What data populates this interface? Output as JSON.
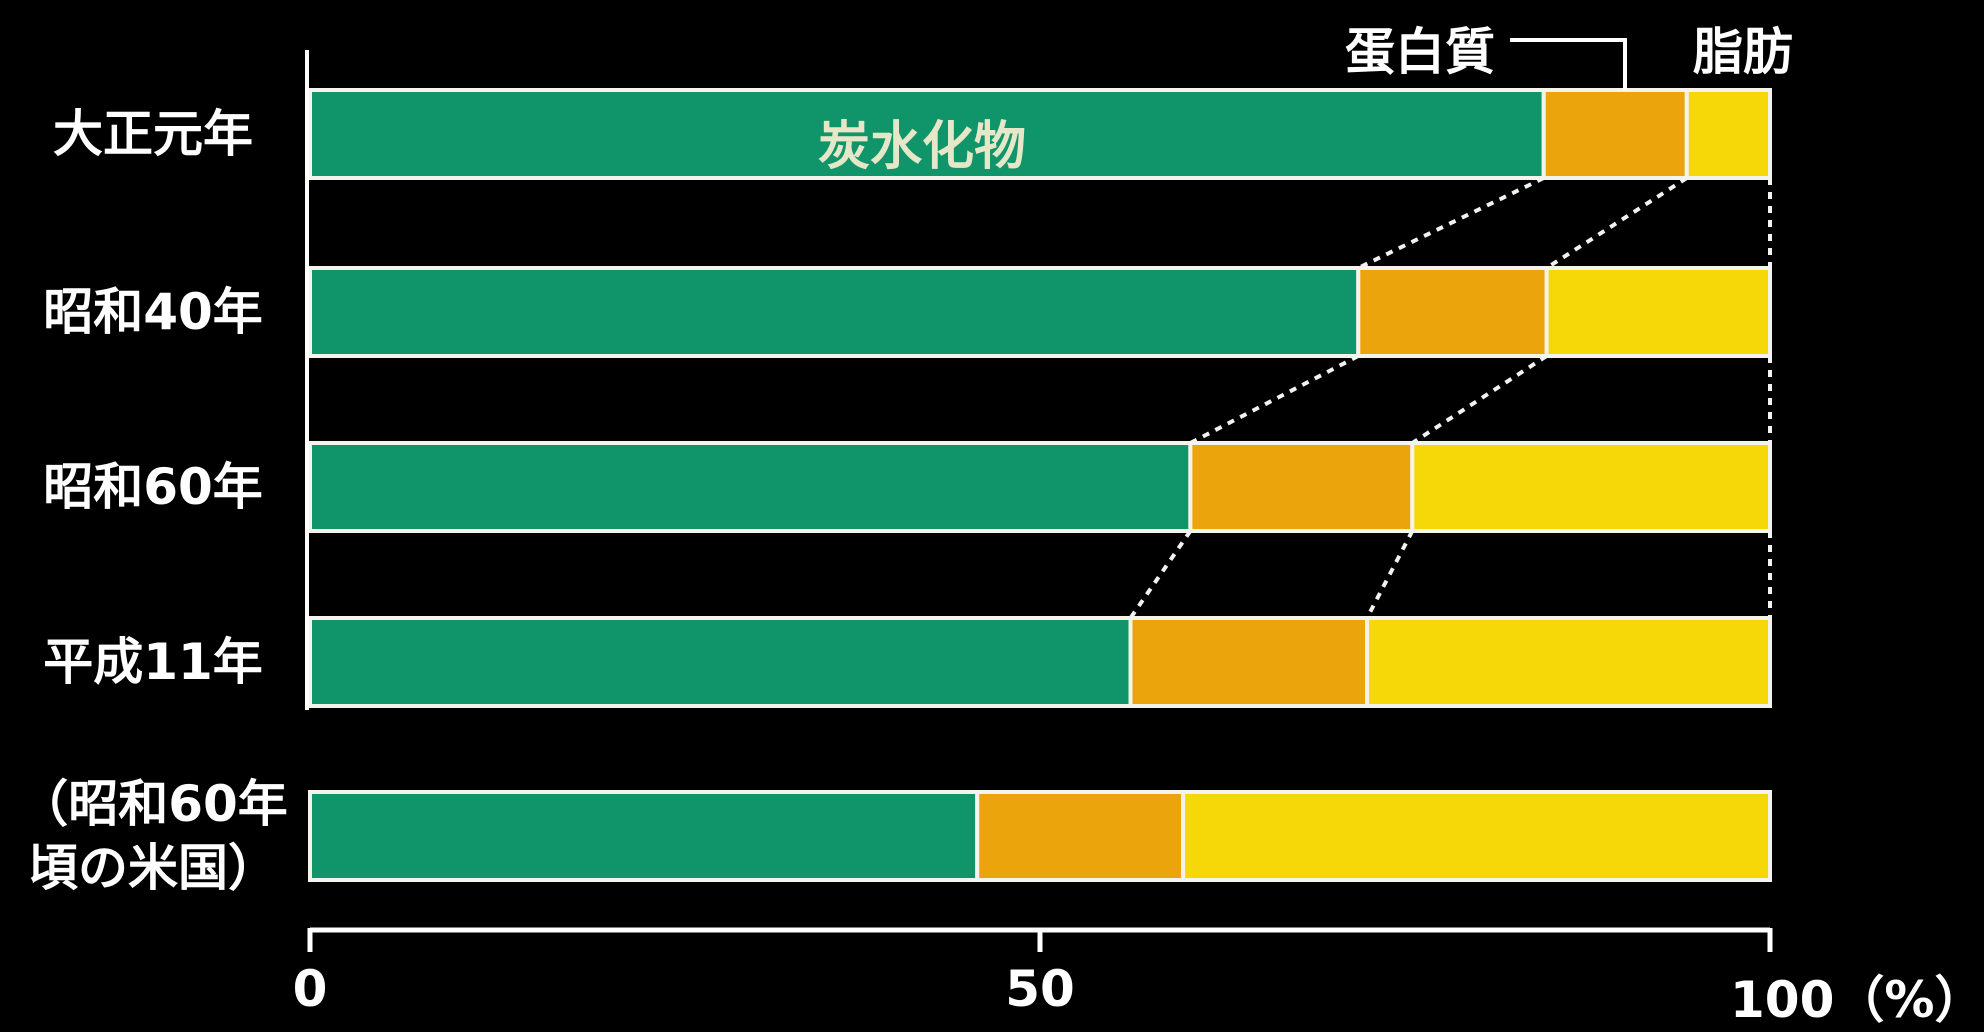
{
  "chart_data": {
    "type": "bar",
    "orientation": "horizontal",
    "stacked": true,
    "percent": true,
    "categories": [
      "大正元年",
      "昭和40年",
      "昭和60年",
      "平成11年",
      "（昭和60年\n頃の米国）"
    ],
    "series": [
      {
        "name": "炭水化物",
        "color": "#0f9569",
        "values": [
          84.5,
          71.8,
          60.3,
          56.2,
          45.7
        ]
      },
      {
        "name": "蛋白質",
        "color": "#eba40c",
        "values": [
          9.8,
          12.9,
          15.2,
          16.2,
          14.1
        ]
      },
      {
        "name": "脂肪",
        "color": "#f6d708",
        "values": [
          5.7,
          15.3,
          24.5,
          27.6,
          40.2
        ]
      }
    ],
    "xlim": [
      0,
      100
    ],
    "xticks": [
      {
        "value": 0,
        "label": "0"
      },
      {
        "value": 50,
        "label": "50"
      },
      {
        "value": 100,
        "label": "100（%）"
      }
    ],
    "connectors": "dotted lines joining segment boundaries between consecutive bars",
    "grid": false,
    "legend": "labels above top bar (蛋白質 with leader line, 脂肪) and inside the first bar (炭水化物)"
  }
}
